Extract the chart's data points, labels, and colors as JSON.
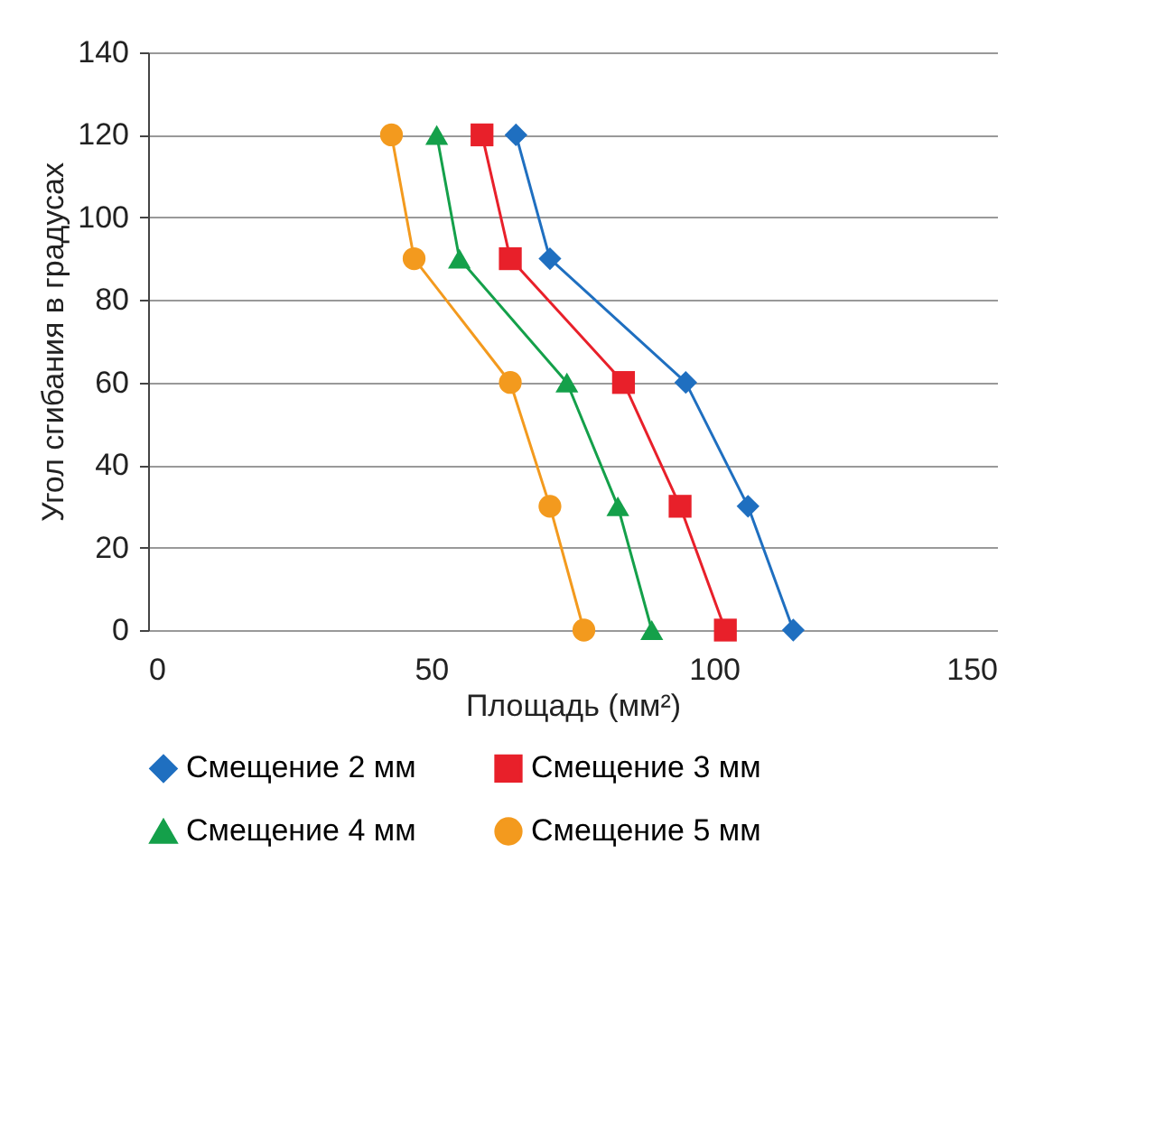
{
  "chart_data": {
    "type": "line",
    "xlabel": "Площадь (мм²)",
    "ylabel": "Угол сгибания в градусах",
    "xlim": [
      0,
      150
    ],
    "xticks": [
      0,
      50,
      100,
      150
    ],
    "ylim": [
      0,
      140
    ],
    "yticks": [
      0,
      20,
      40,
      60,
      80,
      100,
      120,
      140
    ],
    "grid": "y",
    "legend": "bottom",
    "series": [
      {
        "name": "Смещение 2 мм",
        "color": "#1f6fc0",
        "marker": "diamond",
        "x": [
          114,
          106,
          95,
          71,
          65
        ],
        "values": [
          0,
          30,
          60,
          90,
          120
        ]
      },
      {
        "name": "Смещение 3 мм",
        "color": "#e8202a",
        "marker": "square",
        "x": [
          102,
          94,
          84,
          64,
          59
        ],
        "values": [
          0,
          30,
          60,
          90,
          120
        ]
      },
      {
        "name": "Смещение 4 мм",
        "color": "#14a04a",
        "marker": "triangle",
        "x": [
          89,
          83,
          74,
          55,
          51
        ],
        "values": [
          0,
          30,
          60,
          90,
          120
        ]
      },
      {
        "name": "Смещение 5 мм",
        "color": "#f39a1e",
        "marker": "circle",
        "x": [
          77,
          71,
          64,
          47,
          43
        ],
        "values": [
          0,
          30,
          60,
          90,
          120
        ]
      }
    ]
  }
}
